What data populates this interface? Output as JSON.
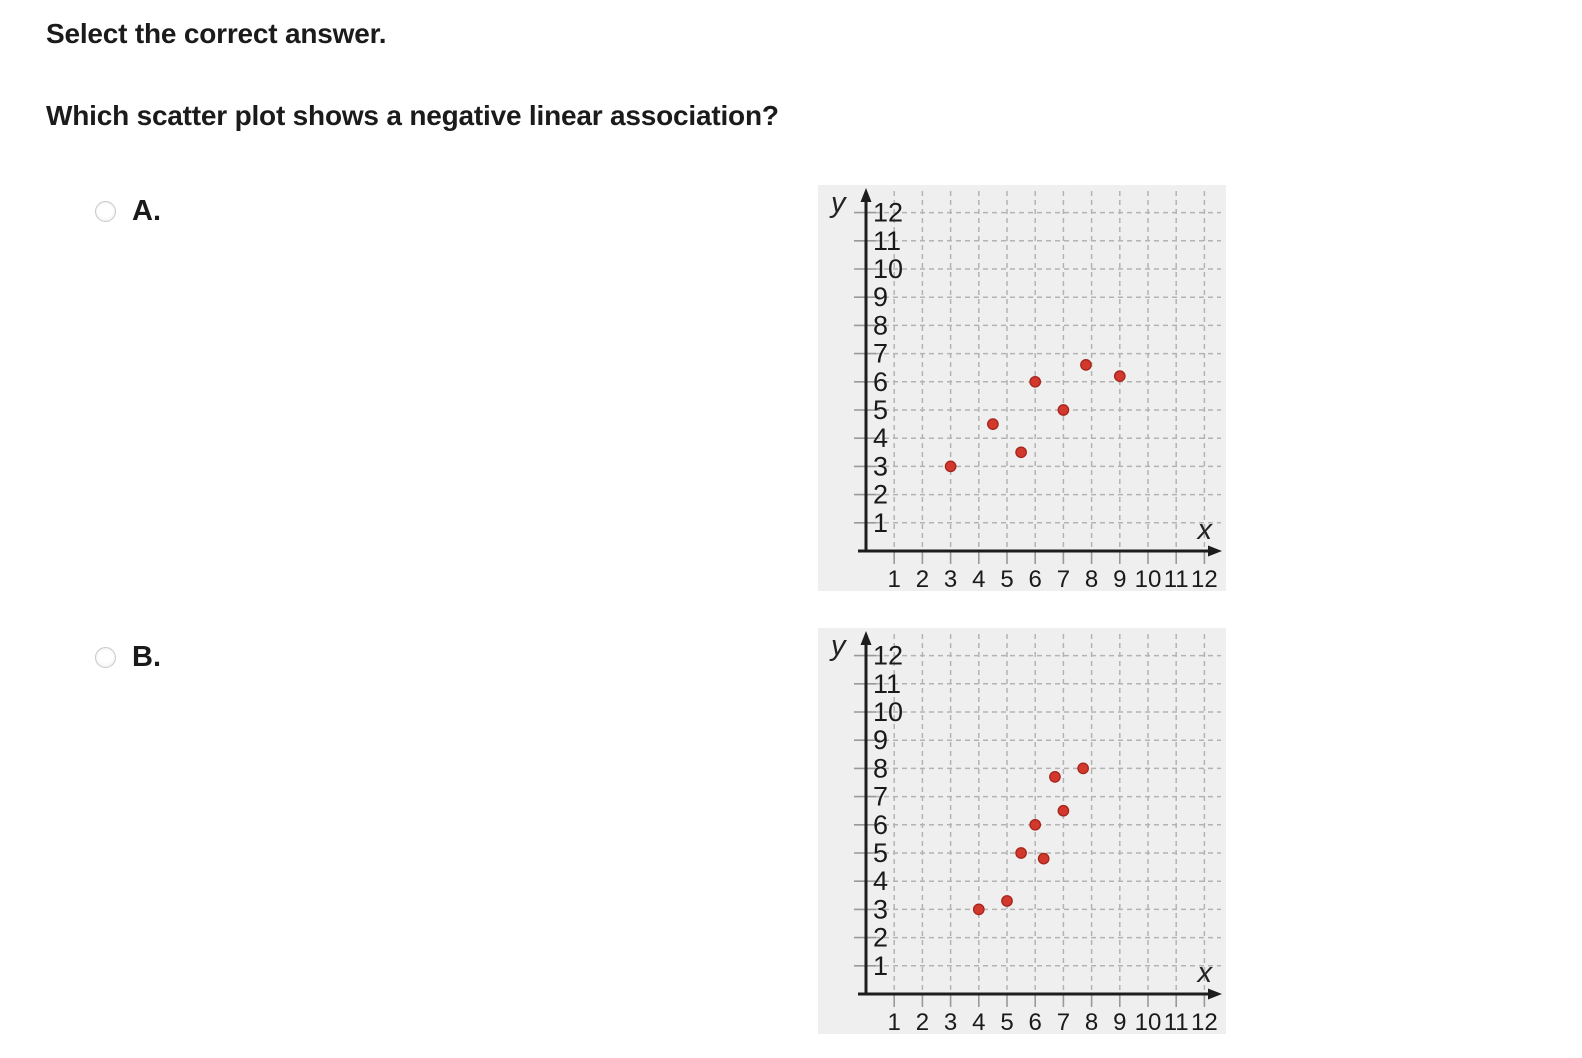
{
  "question": {
    "prompt": "Select the correct answer.",
    "text": "Which scatter plot shows a negative linear association?"
  },
  "options": [
    {
      "id": "A",
      "label": "A.",
      "selected": false
    },
    {
      "id": "B",
      "label": "B.",
      "selected": false
    }
  ],
  "chart_data": [
    {
      "type": "scatter",
      "option": "A",
      "title": "",
      "xlabel": "x",
      "ylabel": "y",
      "xlim": [
        0,
        12
      ],
      "ylim": [
        0,
        12
      ],
      "xticks": [
        1,
        2,
        3,
        4,
        5,
        6,
        7,
        8,
        9,
        10,
        11,
        12
      ],
      "yticks": [
        1,
        2,
        3,
        4,
        5,
        6,
        7,
        8,
        9,
        10,
        11,
        12
      ],
      "grid": true,
      "legend": false,
      "points": [
        [
          3,
          3
        ],
        [
          4.5,
          4.5
        ],
        [
          5.5,
          3.5
        ],
        [
          6,
          6
        ],
        [
          7,
          5
        ],
        [
          7.8,
          6.6
        ],
        [
          9,
          6.2
        ]
      ]
    },
    {
      "type": "scatter",
      "option": "B",
      "title": "",
      "xlabel": "x",
      "ylabel": "y",
      "xlim": [
        0,
        12
      ],
      "ylim": [
        0,
        12
      ],
      "xticks": [
        1,
        2,
        3,
        4,
        5,
        6,
        7,
        8,
        9,
        10,
        11,
        12
      ],
      "yticks": [
        1,
        2,
        3,
        4,
        5,
        6,
        7,
        8,
        9,
        10,
        11,
        12
      ],
      "grid": true,
      "legend": false,
      "points": [
        [
          4,
          3
        ],
        [
          5,
          3.3
        ],
        [
          5.5,
          5
        ],
        [
          6,
          6
        ],
        [
          6.3,
          4.8
        ],
        [
          6.7,
          7.7
        ],
        [
          7,
          6.5
        ],
        [
          7.7,
          8
        ]
      ]
    }
  ],
  "style": {
    "page_bg": "#ffffff",
    "panel_bg": "#efefef",
    "grid_color": "#b3b3b3",
    "tick_color": "#999999",
    "axis_color": "#1d1d1d",
    "point_fill": "#d2382c",
    "point_stroke": "#a5251d",
    "text_color": "#1b1b1b"
  }
}
